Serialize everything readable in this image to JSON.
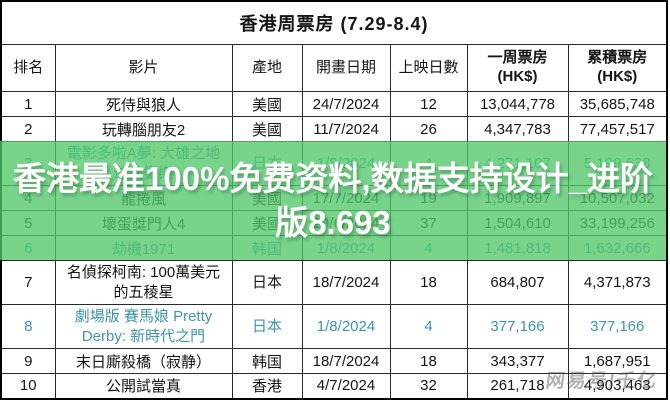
{
  "title": "香港周票房 (7.29-8.4)",
  "table": {
    "headers": [
      {
        "label": "排名",
        "bold": false
      },
      {
        "label": "影片",
        "bold": false
      },
      {
        "label": "產地",
        "bold": false
      },
      {
        "label": "開畫日期",
        "bold": false
      },
      {
        "label": "上映日數",
        "bold": false
      },
      {
        "label": "一周票房\n(HK$)",
        "bold": true
      },
      {
        "label": "累積票房\n(HK$)",
        "bold": true
      }
    ],
    "rows": [
      {
        "rank": "1",
        "film": "死侍與狼人",
        "origin": "美國",
        "release_date": "24/7/2024",
        "days": "12",
        "weekly_gross": "13,044,778",
        "cumulative_gross": "35,685,748",
        "new_release": false,
        "tinted": false,
        "tall": false
      },
      {
        "rank": "2",
        "film": "玩轉腦朋友2",
        "origin": "美國",
        "release_date": "11/7/2024",
        "days": "26",
        "weekly_gross": "4,347,783",
        "cumulative_gross": "77,457,517",
        "new_release": false,
        "tinted": false,
        "tall": false
      },
      {
        "rank": "3",
        "film": "電影多啦A夢: 大雄之地球交響樂",
        "origin": "日本",
        "release_date": "1/8/2024",
        "days": "4",
        "weekly_gross": "4,271,107",
        "cumulative_gross": "5,199,638",
        "new_release": true,
        "tinted": true,
        "tall": true
      },
      {
        "rank": "4",
        "film": "龍捲風",
        "origin": "美國",
        "release_date": "17/7/2024",
        "days": "19",
        "weekly_gross": "1,909,897",
        "cumulative_gross": "10,507,032",
        "new_release": false,
        "tinted": true,
        "tall": false
      },
      {
        "rank": "5",
        "film": "壞蛋獎門人4",
        "origin": "美國",
        "release_date": "29/6/2024",
        "days": "37",
        "weekly_gross": "1,504,610",
        "cumulative_gross": "33,199,256",
        "new_release": false,
        "tinted": true,
        "tall": false
      },
      {
        "rank": "6",
        "film": "劫機1971",
        "origin": "韩国",
        "release_date": "1/8/2024",
        "days": "4",
        "weekly_gross": "1,481,818",
        "cumulative_gross": "1,632,666",
        "new_release": true,
        "tinted": true,
        "tall": false
      },
      {
        "rank": "7",
        "film": "名偵探柯南: 100萬美元的五稜星",
        "origin": "日本",
        "release_date": "18/7/2024",
        "days": "18",
        "weekly_gross": "684,807",
        "cumulative_gross": "4,371,873",
        "new_release": false,
        "tinted": false,
        "tall": true
      },
      {
        "rank": "8",
        "film": "劇場版 賽馬娘 Pretty Derby: 新時代之門",
        "origin": "日本",
        "release_date": "1/8/2024",
        "days": "4",
        "weekly_gross": "377,166",
        "cumulative_gross": "377,166",
        "new_release": true,
        "tinted": false,
        "tall": true
      },
      {
        "rank": "9",
        "film": "末日廝殺橋（寂静）",
        "origin": "韩国",
        "release_date": "18/7/2024",
        "days": "18",
        "weekly_gross": "343,377",
        "cumulative_gross": "1,687,951",
        "new_release": false,
        "tinted": false,
        "tall": false
      },
      {
        "rank": "10",
        "film": "公開試當真",
        "origin": "香港",
        "release_date": "4/7/2024",
        "days": "32",
        "weekly_gross": "261,718",
        "cumulative_gross": "4,903,463",
        "new_release": false,
        "tinted": false,
        "tall": false
      }
    ]
  },
  "overlay": {
    "text": "香港最准100%免费资料,数据支持设计_进阶版8.693",
    "background_color": "#52c66a",
    "text_color": "#ffffff"
  },
  "watermark": {
    "text": "网易号|千亿"
  },
  "colors": {
    "default_text": "#151515",
    "new_release_text": "#3f96a8",
    "border": "#2b2b2b"
  }
}
